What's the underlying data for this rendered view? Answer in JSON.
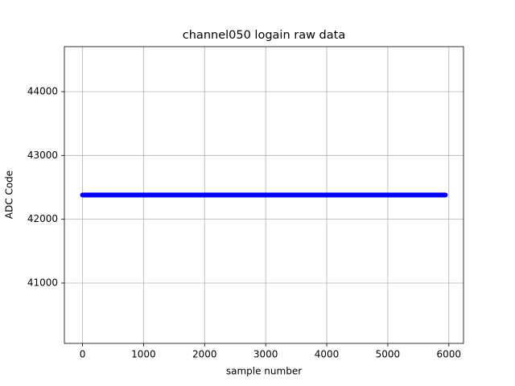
{
  "chart_data": {
    "type": "line",
    "title": "channel050 logain raw data",
    "x_label": "sample number",
    "y_label": "ADC Code",
    "series": [
      {
        "name": "raw data",
        "color": "#0000ff",
        "x": [
          0,
          5943
        ],
        "values": [
          42380,
          42380
        ]
      }
    ],
    "xlim": [
      -297,
      6240
    ],
    "xticks": [
      0,
      1000,
      2000,
      3000,
      4000,
      5000,
      6000
    ],
    "ylim": [
      40054,
      44706
    ],
    "yticks": [
      41000,
      42000,
      43000,
      44000
    ],
    "grid": true
  }
}
